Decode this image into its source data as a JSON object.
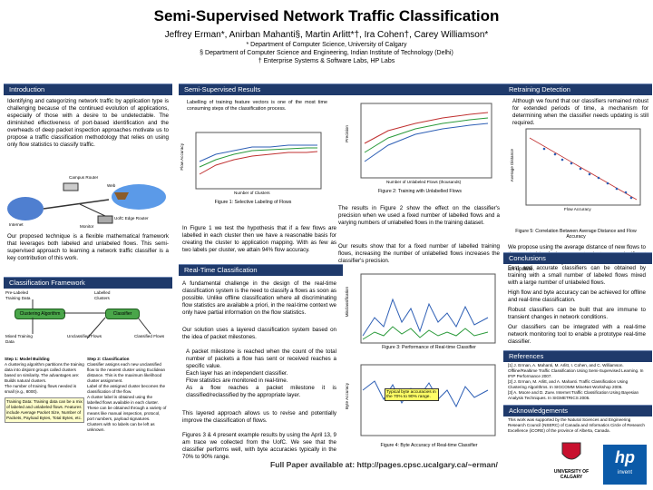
{
  "header": {
    "title": "Semi-Supervised Network Traffic Classification",
    "authors": "Jeffrey Erman*,  Anirban Mahanti§,  Martin Arlitt*†,  Ira Cohen†,  Carey Williamson*",
    "aff1": "* Department of Computer Science, University of Calgary",
    "aff2": "§ Department of Computer Science and Engineering, Indian Institute of Technology (Delhi)",
    "aff3": "† Enterprise Systems & Software Labs, HP Labs"
  },
  "sections": {
    "intro": "Introduction",
    "framework": "Classification Framework",
    "results": "Semi-Supervised Results",
    "realtime": "Real-Time Classification",
    "retraining": "Retraining Detection",
    "conclusions": "Conclusions",
    "references": "References",
    "ack": "Acknowledgements"
  },
  "intro": {
    "p1": "Identifying and categorizing network traffic by application type is challenging because of the continued evolution of applications, especially of those with a desire to be undetectable. The diminished effectiveness of port-based identification and the overheads of deep packet inspection approaches motivate us to propose a traffic classification methodology that relies on using only flow statistics to classify traffic.",
    "p2": "Our proposed technique is a flexible mathematical framework that leverages both labeled and unlabeled flows. This semi-supervised approach to learning a network traffic classifier is a key contribution of this work.",
    "campus_label": "Campus Router",
    "web_label": "Web",
    "internet_label": "Internet",
    "uofc_label": "UofC Edge Router",
    "monitor_label": "Monitor"
  },
  "framework": {
    "pre_labeled": "Pre-Labeled Training Data",
    "labelled_clusters": "Labelled Clusters",
    "clustering_algorithm": "Clustering Algorithm",
    "classifier": "Classifier",
    "mixed_training": "Mixed Training Data",
    "unclassified_flows": "Unclassified Flows",
    "classified_flows": "Classified Flows",
    "step1_title": "Step 1: Model Building",
    "step1_text": "A clustering algorithm partitions the training data into disjoint groups called clusters based on similarity. The advantages are:",
    "step1_b1": "Builds natural clusters.",
    "step1_b2": "The number of training flows needed is small (e.g., 8000).",
    "training_text": "Training Data: Training data can be a mix of labeled and unlabeled flows. Features include Average Packet Size, Number of Packets, Payload Bytes, Total Bytes, etc.",
    "step2_title": "Step 2: Classification",
    "step2_b1": "Classifier assigns each new unclassified flow to the nearest cluster using Euclidean distance. This is the maximum likelihood cluster assignment.",
    "step2_b2": "Label of the assigned cluster becomes the classification of the flow.",
    "step2_b3": "A cluster label is obtained using the labelled flows available in each cluster.",
    "step2_b4": "These can be obtained through a variety of means like manual inspection, protocol, port numbers, payload signatures.",
    "step2_b5": "Clusters with no labels can be left as unknown."
  },
  "results": {
    "p1": "Labelling of training feature vectors is one of the most time consuming steps of the classification process.",
    "fig1_caption": "Figure 1: Selective Labeling of Flows",
    "fig2_caption": "Figure 2: Training with Unlabelled Flows",
    "fig1_ylabel": "Flow Accuracy",
    "fig1_xlabel": "Number of Clusters",
    "fig2_ylabel": "Precision",
    "fig2_xlabel": "Number of Unlabeled Flows (thousands)",
    "p2": "In Figure 1 we test the hypothesis that if a few flows are labelled in each cluster then we have a reasonable basis for creating the cluster to application mapping. With as few as two labels per cluster, we attain 94% flow accuracy.",
    "p3": "The results in Figure 2 show the effect on the classifier's precision when we used a fixed number of labelled flows and a varying numbers of unlabelled flows in the training dataset.",
    "p4": "Our results show that for a fixed number of labelled training flows, increasing the number of unlabelled flows increases the classifier's precision."
  },
  "realtime": {
    "p1": "A fundamental challenge in the design of the real-time classification system is the need to classify a flows as soon as possible. Unlike offline classification where all discriminating flow statistics are available a priori, in the real-time context we only have partial information on the flow statistics.",
    "p2": "Our solution uses a layered classification system based on the idea of packet milestones.",
    "b1": "A packet milestone is reached when the count of the total number of packets a flow has sent or received reaches a specific value.",
    "b2": "Each layer has an independent classifier.",
    "b3": "Flow statistics are monitored in real-time.",
    "b4": "As a flow reaches a packet milestone it is classified/reclassified by the appropriate layer.",
    "p3": "This layered approach allows us to revise and potentially improve the classification of flows.",
    "p4": "Figures 3 & 4 present example results by using the April 13, 9 am trace we collected from the UofC. We see that the classifier performs well, with byte accuracies typically in the 70% to 90% range.",
    "fig3_caption": "Figure 3: Performance of Real-time Classifier",
    "fig4_caption": "Figure 4: Byte Accuracy of Real-time Classifier",
    "fig3_ylabel": "Misclassification",
    "fig4_ylabel": "Byte Accuracy",
    "callout": "Typical byte accuracies in the 70% to 90% range.",
    "fullpaper": "Full Paper available at: http://pages.cpsc.ucalgary.ca/~erman/"
  },
  "retraining": {
    "p1": "Although we found that our classifiers remained robust for extended periods of time, a mechanism for determining when the classifier needs updating is still required.",
    "fig5_caption": "Figure 5: Correlation Between Average Distance and Flow Accuracy",
    "fig5_xlabel": "Flow Accuracy",
    "fig5_ylabel": "Average Distance",
    "p2": "We propose using the average distance of new flows to the centroid of the nearest cluster; a significant increase in the average distance indicates the need for an update."
  },
  "conclusions": {
    "c1": "Fast and accurate classifiers can be obtained by training with a small number of labeled flows mixed with a large number of unlabeled flows.",
    "c2": "High flow and byte accuracy can be achieved for offline and real-time classification.",
    "c3": "Robust classifiers can be built that are immune to transient changes in network conditions.",
    "c4": "Our classifiers can be integrated with a real-time network monitoring tool to enable a prototype real-time classifier."
  },
  "references": {
    "r1": "[1] J. Erman, A. Mahanti, M. Arlitt, I. Cohen, and C. Williamson. Offline/Realtime Traffic Classification Using Semi-Supervised Learning. In IFIP Performance 2007.",
    "r2": "[2] J. Erman, M. Arlitt, and A. Mahanti. Traffic Classification Using Clustering Algorithms. In SIGCOMM MineNet Workshop 2006.",
    "r3": "[3] A. Moore and D. Zuev. Internet Traffic Classification Using Bayesian Analysis Techniques. In SIGMETRICS 2005."
  },
  "ack": {
    "p1": "This work was supported by the Natural Sciences and Engineering Research Council (NSERC) of Canada and Informatics Circle of Research Excellence (iCORE) of the province of Alberta, Canada."
  },
  "logos": {
    "uofc": "UNIVERSITY OF CALGARY",
    "hp": "invent"
  },
  "colors": {
    "bar": "#1f3a6b",
    "green": "#4aa64a",
    "accent": "#c00000"
  }
}
